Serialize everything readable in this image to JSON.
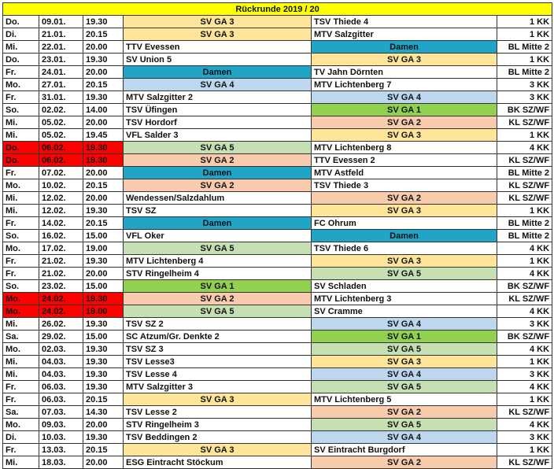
{
  "title": "Rückrunde 2019 / 20",
  "rows": [
    {
      "day": "Do.",
      "date": "09.01.",
      "time": "19.30",
      "home": "SV GA 3",
      "away": "TSV Thiede 4",
      "league": "1 KK"
    },
    {
      "day": "Di.",
      "date": "21.01.",
      "time": "20.15",
      "home": "SV GA 3",
      "away": "MTV Salzgitter",
      "league": "1 KK"
    },
    {
      "day": "Mi.",
      "date": "22.01.",
      "time": "20.00",
      "home": "TTV Evessen",
      "away": "Damen",
      "league": "BL Mitte 2"
    },
    {
      "day": "Do.",
      "date": "23.01.",
      "time": "19.30",
      "home": "SV Union 5",
      "away": "SV GA 3",
      "league": "1 KK"
    },
    {
      "day": "Fr.",
      "date": "24.01.",
      "time": "20.00",
      "home": "Damen",
      "away": "TV Jahn Dörnten",
      "league": "BL Mitte 2"
    },
    {
      "day": "Mo.",
      "date": "27.01.",
      "time": "20.15",
      "home": "SV GA 4",
      "away": "MTV Lichtenberg 7",
      "league": "3 KK"
    },
    {
      "day": "Fr.",
      "date": "31.01.",
      "time": "19.30",
      "home": "MTV Salzgitter 2",
      "away": "SV GA 4",
      "league": "3 KK"
    },
    {
      "day": "So.",
      "date": "02.02.",
      "time": "14.00",
      "home": "TSV Üfingen",
      "away": "SV GA 1",
      "league": "BK SZ/WF"
    },
    {
      "day": "Mi.",
      "date": "05.02.",
      "time": "20.00",
      "home": "TSV Hordorf",
      "away": "SV GA 2",
      "league": "KL SZ/WF"
    },
    {
      "day": "Mi.",
      "date": "05.02.",
      "time": "19.45",
      "home": "VFL Salder 3",
      "away": "SV GA 3",
      "league": "1 KK"
    },
    {
      "day": "Do.",
      "date": "06.02.",
      "time": "19.30",
      "home": "SV GA 5",
      "away": "MTV Lichtenberg 8",
      "league": "4 KK",
      "red": true
    },
    {
      "day": "Do.",
      "date": "06.02.",
      "time": "19.30",
      "home": "SV GA 2",
      "away": "TTV Evessen 2",
      "league": "KL SZ/WF",
      "red": true
    },
    {
      "day": "Fr.",
      "date": "07.02.",
      "time": "20.00",
      "home": "Damen",
      "away": "MTV Astfeld",
      "league": "BL Mitte 2"
    },
    {
      "day": "Mo.",
      "date": "10.02.",
      "time": "20.15",
      "home": "SV GA 2",
      "away": "TSV Thiede 3",
      "league": "KL SZ/WF"
    },
    {
      "day": "Mi.",
      "date": "12.02.",
      "time": "20.00",
      "home": "Wendessen/Salzdahlum",
      "away": "SV GA 2",
      "league": "KL SZ/WF"
    },
    {
      "day": "Mi.",
      "date": "12.02.",
      "time": "19.30",
      "home": "TSV SZ",
      "away": "SV GA 3",
      "league": "1 KK"
    },
    {
      "day": "Fr.",
      "date": "14.02.",
      "time": "20.15",
      "home": "Damen",
      "away": "FC Ohrum",
      "league": "BL Mitte 2"
    },
    {
      "day": "So.",
      "date": "16.02.",
      "time": "15.00",
      "home": "VFL Oker",
      "away": "Damen",
      "league": "BL Mitte 2"
    },
    {
      "day": "Mo.",
      "date": "17.02.",
      "time": "19.00",
      "home": "SV GA 5",
      "away": "TSV Thiede 6",
      "league": "4 KK"
    },
    {
      "day": "Fr.",
      "date": "21.02.",
      "time": "19.30",
      "home": "MTV Lichtenberg 4",
      "away": "SV GA 3",
      "league": "1 KK"
    },
    {
      "day": "Fr.",
      "date": "21.02.",
      "time": "20.00",
      "home": "STV Ringelheim 4",
      "away": "SV GA 5",
      "league": "4 KK"
    },
    {
      "day": "So.",
      "date": "23.02.",
      "time": "15.00",
      "home": "SV GA 1",
      "away": "SV Schladen",
      "league": "BK SZ/WF"
    },
    {
      "day": "Mo.",
      "date": "24.02.",
      "time": "19.30",
      "home": "SV GA 2",
      "away": "MTV Lichtenberg 3",
      "league": "KL SZ/WF",
      "red": true
    },
    {
      "day": "Mo.",
      "date": "24.02.",
      "time": "19.00",
      "home": "SV GA 5",
      "away": "SV Cramme",
      "league": "4 KK",
      "red": true
    },
    {
      "day": "Mi.",
      "date": "26.02.",
      "time": "19.30",
      "home": "TSV SZ 2",
      "away": "SV GA 4",
      "league": "3 KK"
    },
    {
      "day": "Sa.",
      "date": "29.02.",
      "time": "15.00",
      "home": "SC Atzum/Gr. Denkte 2",
      "away": "SV GA 1",
      "league": "BK SZ/WF"
    },
    {
      "day": "Mo.",
      "date": "02.03.",
      "time": "19.30",
      "home": "TSV SZ 3",
      "away": "SV GA 5",
      "league": "4 KK"
    },
    {
      "day": "Mi.",
      "date": "04.03.",
      "time": "19.30",
      "home": "TSV Lesse3",
      "away": "SV GA 3",
      "league": "1 KK"
    },
    {
      "day": "Mi.",
      "date": "04.03.",
      "time": "19.30",
      "home": "TSV Lesse 4",
      "away": "SV GA 4",
      "league": "3 KK"
    },
    {
      "day": "Fr.",
      "date": "06.03.",
      "time": "19.30",
      "home": "MTV Salzgitter 3",
      "away": "SV GA 5",
      "league": "4 KK"
    },
    {
      "day": "Fr.",
      "date": "06.03.",
      "time": "20.15",
      "home": "SV GA 3",
      "away": "MTV Lichtenberg 5",
      "league": "1 KK"
    },
    {
      "day": "Sa.",
      "date": "07.03.",
      "time": "14.30",
      "home": "TSV Lesse 2",
      "away": "SV GA 2",
      "league": "KL SZ/WF"
    },
    {
      "day": "Mo.",
      "date": "09.03.",
      "time": "20.00",
      "home": "STV Ringelheim 3",
      "away": "SV GA 5",
      "league": "4 KK"
    },
    {
      "day": "Di.",
      "date": "10.03.",
      "time": "19.30",
      "home": "TSV Beddingen 2",
      "away": "SV GA 4",
      "league": "3 KK"
    },
    {
      "day": "Fr.",
      "date": "13.03.",
      "time": "20.15",
      "home": "SV GA 3",
      "away": "SV Eintracht Burgdorf",
      "league": "1 KK"
    },
    {
      "day": "Mi.",
      "date": "18.03.",
      "time": "20.00",
      "home": "ESG Eintracht Stöckum",
      "away": "SV GA 2",
      "league": "KL SZ/WF"
    }
  ]
}
